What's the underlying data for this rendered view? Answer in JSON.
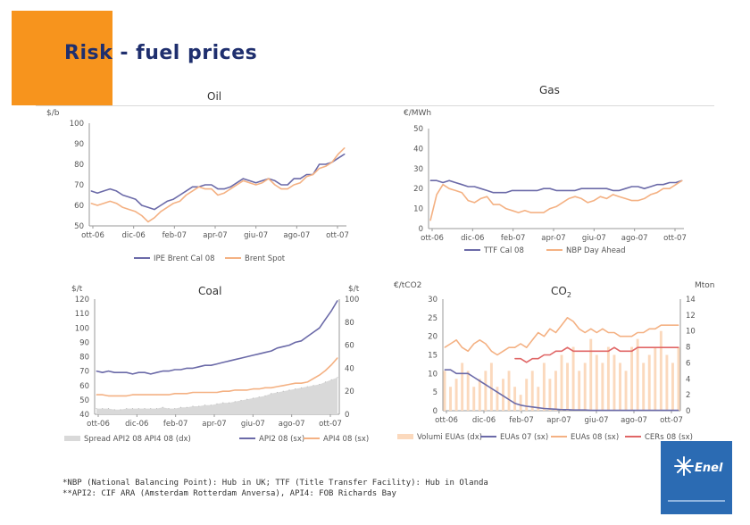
{
  "page": {
    "title": "Risk - fuel prices",
    "accent_color": "#f7941d",
    "title_color": "#1f2f6e"
  },
  "footnotes": [
    "*NBP (National Balancing Point): Hub in UK; TTF (Title Transfer Facility): Hub in Olanda",
    "**API2: CIF ARA (Amsterdam Rotterdam Anversa), API4: FOB Richards Bay"
  ],
  "logo": {
    "text": "Enel",
    "icon": "enel-sun-logo-icon"
  },
  "chart_data": [
    {
      "id": "oil",
      "type": "line",
      "title": "Oil",
      "ylabel": "$/b",
      "x_ticks": [
        "ott-06",
        "dic-06",
        "feb-07",
        "apr-07",
        "giu-07",
        "ago-07",
        "ott-07"
      ],
      "ylim": [
        50,
        100
      ],
      "yticks": [
        50,
        60,
        70,
        80,
        90,
        100
      ],
      "grid": false,
      "legend": "bottom",
      "series": [
        {
          "name": "IPE Brent Cal 08",
          "color": "#6b6aa8",
          "values": [
            67,
            66,
            67,
            68,
            67,
            65,
            64,
            63,
            60,
            59,
            58,
            60,
            62,
            63,
            65,
            67,
            69,
            69,
            70,
            70,
            68,
            68,
            69,
            71,
            73,
            72,
            71,
            72,
            73,
            72,
            70,
            70,
            73,
            73,
            75,
            75,
            80,
            80,
            81,
            83,
            85
          ]
        },
        {
          "name": "Brent Spot",
          "color": "#f4b183",
          "values": [
            61,
            60,
            61,
            62,
            61,
            59,
            58,
            57,
            55,
            52,
            54,
            57,
            59,
            61,
            62,
            65,
            67,
            69,
            68,
            68,
            65,
            66,
            68,
            70,
            72,
            71,
            70,
            71,
            73,
            70,
            68,
            68,
            70,
            71,
            74,
            75,
            78,
            79,
            81,
            85,
            88
          ]
        }
      ]
    },
    {
      "id": "gas",
      "type": "line",
      "title": "Gas",
      "ylabel": "€/MWh",
      "x_ticks": [
        "ott-06",
        "dic-06",
        "feb-07",
        "apr-07",
        "giu-07",
        "ago-07",
        "ott-07"
      ],
      "ylim": [
        0,
        50
      ],
      "yticks": [
        0,
        10,
        20,
        30,
        40,
        50
      ],
      "grid": false,
      "legend": "bottom",
      "series": [
        {
          "name": "TTF Cal 08",
          "color": "#6b6aa8",
          "values": [
            24,
            24,
            23,
            24,
            23,
            22,
            21,
            21,
            20,
            19,
            18,
            18,
            18,
            19,
            19,
            19,
            19,
            19,
            20,
            20,
            19,
            19,
            19,
            19,
            20,
            20,
            20,
            20,
            20,
            19,
            19,
            20,
            21,
            21,
            20,
            21,
            22,
            22,
            23,
            23,
            24
          ]
        },
        {
          "name": "NBP Day Ahead",
          "color": "#f4b183",
          "values": [
            4,
            17,
            22,
            20,
            19,
            18,
            14,
            13,
            15,
            16,
            12,
            12,
            10,
            9,
            8,
            9,
            8,
            8,
            8,
            10,
            11,
            13,
            15,
            16,
            15,
            13,
            14,
            16,
            15,
            17,
            16,
            15,
            14,
            14,
            15,
            17,
            18,
            20,
            20,
            22,
            24
          ]
        }
      ]
    },
    {
      "id": "coal",
      "type": "line",
      "title": "Coal",
      "ylabel": "$/t",
      "y2label": "$/t",
      "x_ticks": [
        "ott-06",
        "dic-06",
        "feb-07",
        "apr-07",
        "giu-07",
        "ago-07",
        "ott-07"
      ],
      "ylim": [
        40,
        120
      ],
      "yticks": [
        40,
        50,
        60,
        70,
        80,
        90,
        100,
        110,
        120
      ],
      "y2lim": [
        0,
        100
      ],
      "y2ticks": [
        0,
        20,
        40,
        60,
        80,
        100
      ],
      "grid": false,
      "legend": "bottom",
      "series": [
        {
          "name": "Spread API2 08 API4 08 (dx)",
          "color": "#d9d9d9",
          "axis": "y2",
          "type": "area",
          "values": [
            5,
            5,
            5,
            4,
            4,
            5,
            5,
            5,
            5,
            5,
            5,
            6,
            5,
            5,
            6,
            6,
            7,
            7,
            8,
            8,
            9,
            10,
            10,
            11,
            12,
            13,
            14,
            15,
            16,
            18,
            19,
            20,
            21,
            22,
            23,
            24,
            25,
            26,
            28,
            30,
            32
          ]
        },
        {
          "name": "API2 08 (sx)",
          "color": "#6b6aa8",
          "axis": "y",
          "values": [
            70,
            69,
            70,
            69,
            69,
            69,
            68,
            69,
            69,
            68,
            69,
            70,
            70,
            71,
            71,
            72,
            72,
            73,
            74,
            74,
            75,
            76,
            77,
            78,
            79,
            80,
            81,
            82,
            83,
            84,
            86,
            87,
            88,
            90,
            91,
            94,
            97,
            100,
            106,
            112,
            119
          ]
        },
        {
          "name": "API4 08 (sx)",
          "color": "#f4b183",
          "axis": "y2",
          "values": [
            17,
            17,
            16,
            16,
            16,
            16,
            17,
            17,
            17,
            17,
            17,
            17,
            17,
            18,
            18,
            18,
            19,
            19,
            19,
            19,
            19,
            20,
            20,
            21,
            21,
            21,
            22,
            22,
            23,
            23,
            24,
            25,
            26,
            27,
            27,
            28,
            31,
            34,
            38,
            43,
            49
          ]
        }
      ]
    },
    {
      "id": "co2",
      "type": "line",
      "title": "CO2",
      "title_main": "CO",
      "title_sub": "2",
      "ylabel": "€/tCO2",
      "y2label": "Mton",
      "x_ticks": [
        "ott-06",
        "dic-06",
        "feb-07",
        "apr-07",
        "giu-07",
        "ago-07",
        "ott-07"
      ],
      "ylim": [
        0,
        30
      ],
      "yticks": [
        0,
        5,
        10,
        15,
        20,
        25,
        30
      ],
      "y2lim": [
        0,
        14
      ],
      "y2ticks": [
        0,
        2,
        4,
        6,
        8,
        10,
        12,
        14
      ],
      "grid": false,
      "legend": "bottom",
      "series": [
        {
          "name": "Volumi EUAs (dx)",
          "color": "#fbd9bd",
          "axis": "y2",
          "type": "bar",
          "values": [
            5,
            3,
            4,
            6,
            5,
            3,
            4,
            5,
            6,
            3,
            4,
            5,
            3,
            2,
            4,
            5,
            3,
            6,
            4,
            5,
            7,
            6,
            8,
            5,
            6,
            9,
            7,
            6,
            8,
            7,
            6,
            5,
            8,
            9,
            6,
            7,
            8,
            10,
            7,
            6,
            8
          ]
        },
        {
          "name": "EUAs 07 (sx)",
          "color": "#6b6aa8",
          "axis": "y",
          "values": [
            11,
            11,
            10,
            10,
            10,
            9,
            8,
            7,
            6,
            5,
            4,
            3,
            2,
            1.5,
            1.2,
            1,
            0.8,
            0.6,
            0.5,
            0.4,
            0.3,
            0.3,
            0.2,
            0.2,
            0.2,
            0.1,
            0.1,
            0.1,
            0.1,
            0.1,
            0.1,
            0.1,
            0.1,
            0.1,
            0.1,
            0.1,
            0.1,
            0.1,
            0.1,
            0.1,
            0.1
          ]
        },
        {
          "name": "EUAs 08 (sx)",
          "color": "#f4b183",
          "axis": "y",
          "values": [
            17,
            18,
            19,
            17,
            16,
            18,
            19,
            18,
            16,
            15,
            16,
            17,
            17,
            18,
            17,
            19,
            21,
            20,
            22,
            21,
            23,
            25,
            24,
            22,
            21,
            22,
            21,
            22,
            21,
            21,
            20,
            20,
            20,
            21,
            21,
            22,
            22,
            23,
            23,
            23,
            23
          ]
        },
        {
          "name": "CERs 08 (sx)",
          "color": "#e06666",
          "axis": "y",
          "start_index": 12,
          "values": [
            null,
            null,
            null,
            null,
            null,
            null,
            null,
            null,
            null,
            null,
            null,
            null,
            14,
            14,
            13,
            14,
            14,
            15,
            15,
            16,
            16,
            17,
            16,
            16,
            16,
            16,
            16,
            16,
            16,
            17,
            16,
            16,
            16,
            17,
            17,
            17,
            17,
            17,
            17,
            17,
            17
          ]
        }
      ]
    }
  ]
}
